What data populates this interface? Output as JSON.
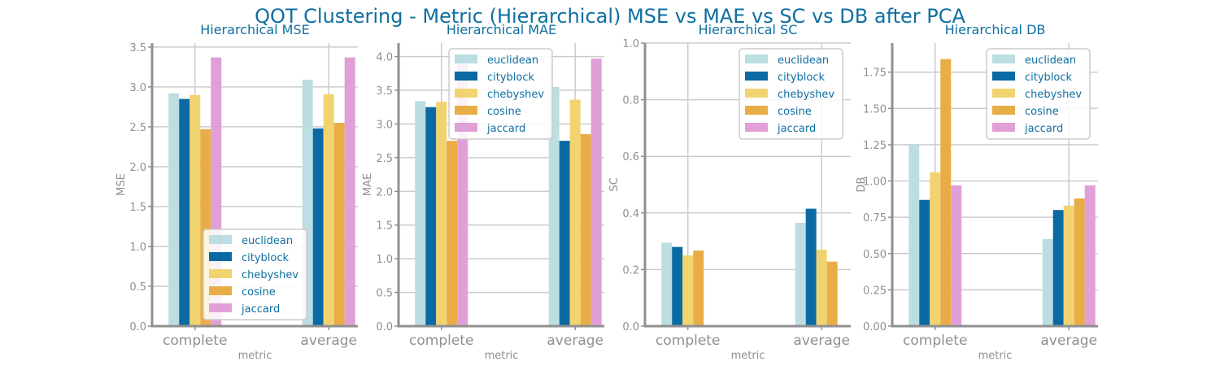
{
  "suptitle": "QOT Clustering - Metric (Hierarchical) MSE vs MAE vs SC vs DB after PCA",
  "colors": {
    "title": "#0e6fa0",
    "axis_text": "#909090",
    "spine": "#909090",
    "grid": "#cccccc",
    "legend_text": "#0e6fa0",
    "legend_border": "#cccccc"
  },
  "series_colors": {
    "euclidean": "#bcdde2",
    "cityblock": "#0b6aa3",
    "chebyshev": "#f1d46f",
    "cosine": "#e9ad48",
    "jaccard": "#e19fd7"
  },
  "chart_data": [
    {
      "type": "bar",
      "title": "Hierarchical MSE",
      "xlabel": "metric",
      "ylabel": "MSE",
      "categories": [
        "complete",
        "average"
      ],
      "ylim": [
        0,
        3.55
      ],
      "yticks": [
        0.0,
        0.5,
        1.0,
        1.5,
        2.0,
        2.5,
        3.0,
        3.5
      ],
      "tick_format": 1,
      "grid": true,
      "legend": "lower-center",
      "series": [
        {
          "name": "euclidean",
          "values": [
            2.92,
            3.09
          ]
        },
        {
          "name": "cityblock",
          "values": [
            2.85,
            2.48
          ]
        },
        {
          "name": "chebyshev",
          "values": [
            2.9,
            2.91
          ]
        },
        {
          "name": "cosine",
          "values": [
            2.47,
            2.55
          ]
        },
        {
          "name": "jaccard",
          "values": [
            3.37,
            3.37
          ]
        }
      ]
    },
    {
      "type": "bar",
      "title": "Hierarchical MAE",
      "xlabel": "metric",
      "ylabel": "MAE",
      "categories": [
        "complete",
        "average"
      ],
      "ylim": [
        0,
        4.2
      ],
      "yticks": [
        0.0,
        0.5,
        1.0,
        1.5,
        2.0,
        2.5,
        3.0,
        3.5,
        4.0
      ],
      "tick_format": 1,
      "grid": true,
      "legend": "top-center",
      "series": [
        {
          "name": "euclidean",
          "values": [
            3.34,
            3.55
          ]
        },
        {
          "name": "cityblock",
          "values": [
            3.25,
            2.75
          ]
        },
        {
          "name": "chebyshev",
          "values": [
            3.33,
            3.36
          ]
        },
        {
          "name": "cosine",
          "values": [
            2.75,
            2.85
          ]
        },
        {
          "name": "jaccard",
          "values": [
            3.97,
            3.97
          ]
        }
      ]
    },
    {
      "type": "bar",
      "title": "Hierarchical SC",
      "xlabel": "metric",
      "ylabel": "SC",
      "categories": [
        "complete",
        "average"
      ],
      "ylim": [
        0,
        1.0
      ],
      "yticks": [
        0.0,
        0.2,
        0.4,
        0.6,
        0.8,
        1.0
      ],
      "tick_format": 1,
      "grid": true,
      "legend": "top-right",
      "series": [
        {
          "name": "euclidean",
          "values": [
            0.295,
            0.365
          ]
        },
        {
          "name": "cityblock",
          "values": [
            0.28,
            0.415
          ]
        },
        {
          "name": "chebyshev",
          "values": [
            0.25,
            0.27
          ]
        },
        {
          "name": "cosine",
          "values": [
            0.267,
            0.228
          ]
        },
        {
          "name": "jaccard",
          "values": [
            0,
            0
          ]
        }
      ]
    },
    {
      "type": "bar",
      "title": "Hierarchical DB",
      "xlabel": "metric",
      "ylabel": "DB",
      "categories": [
        "complete",
        "average"
      ],
      "ylim": [
        0,
        1.95
      ],
      "yticks": [
        0.0,
        0.25,
        0.5,
        0.75,
        1.0,
        1.25,
        1.5,
        1.75
      ],
      "tick_format": 2,
      "grid": true,
      "legend": "top-right",
      "series": [
        {
          "name": "euclidean",
          "values": [
            1.25,
            0.6
          ]
        },
        {
          "name": "cityblock",
          "values": [
            0.87,
            0.8
          ]
        },
        {
          "name": "chebyshev",
          "values": [
            1.06,
            0.83
          ]
        },
        {
          "name": "cosine",
          "values": [
            1.84,
            0.88
          ]
        },
        {
          "name": "jaccard",
          "values": [
            0.97,
            0.97
          ]
        }
      ]
    }
  ]
}
